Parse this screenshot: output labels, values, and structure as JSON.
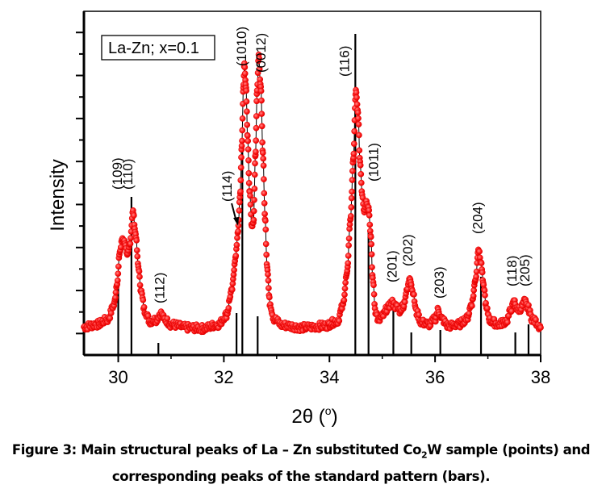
{
  "chart_data": {
    "type": "scatter",
    "title": "",
    "legend": {
      "text": "La-Zn; x=0.1",
      "placement": "top-left"
    },
    "xlabel": "2θ (°)",
    "xlabel_main": "2θ (",
    "xlabel_sup": "o",
    "xlabel_close": ")",
    "ylabel": "Intensity",
    "xlim": [
      29.35,
      38.0
    ],
    "ylim": [
      0,
      426
    ],
    "x_ticks": [
      30,
      32,
      34,
      36,
      38
    ],
    "x_minor_ticks": [
      31,
      33,
      35,
      37
    ],
    "y_tick_labels": "none",
    "grid": false,
    "series": [
      {
        "name": "La-Zn substituted Co2W sample (points)",
        "style": "red-points-with-black-line",
        "color": "#ff1a1a",
        "anchor_points": [
          [
            29.35,
            35
          ],
          [
            29.6,
            38
          ],
          [
            29.8,
            44
          ],
          [
            29.92,
            62
          ],
          [
            29.98,
            90
          ],
          [
            30.03,
            128
          ],
          [
            30.08,
            145
          ],
          [
            30.13,
            140
          ],
          [
            30.17,
            122
          ],
          [
            30.22,
            138
          ],
          [
            30.28,
            178
          ],
          [
            30.33,
            150
          ],
          [
            30.38,
            110
          ],
          [
            30.43,
            80
          ],
          [
            30.5,
            55
          ],
          [
            30.6,
            42
          ],
          [
            30.72,
            44
          ],
          [
            30.8,
            52
          ],
          [
            30.88,
            44
          ],
          [
            31.0,
            38
          ],
          [
            31.3,
            34
          ],
          [
            31.6,
            33
          ],
          [
            31.9,
            38
          ],
          [
            32.05,
            50
          ],
          [
            32.15,
            80
          ],
          [
            32.22,
            120
          ],
          [
            32.27,
            155
          ],
          [
            32.31,
            200
          ],
          [
            32.34,
            260
          ],
          [
            32.37,
            330
          ],
          [
            32.39,
            362
          ],
          [
            32.42,
            330
          ],
          [
            32.45,
            270
          ],
          [
            32.49,
            200
          ],
          [
            32.53,
            160
          ],
          [
            32.56,
            165
          ],
          [
            32.6,
            250
          ],
          [
            32.63,
            330
          ],
          [
            32.66,
            370
          ],
          [
            32.7,
            330
          ],
          [
            32.74,
            250
          ],
          [
            32.78,
            170
          ],
          [
            32.82,
            110
          ],
          [
            32.87,
            65
          ],
          [
            32.95,
            45
          ],
          [
            33.1,
            37
          ],
          [
            33.5,
            34
          ],
          [
            33.9,
            36
          ],
          [
            34.15,
            42
          ],
          [
            34.25,
            60
          ],
          [
            34.33,
            100
          ],
          [
            34.4,
            170
          ],
          [
            34.45,
            240
          ],
          [
            34.5,
            327
          ],
          [
            34.54,
            300
          ],
          [
            34.58,
            240
          ],
          [
            34.62,
            200
          ],
          [
            34.66,
            178
          ],
          [
            34.7,
            190
          ],
          [
            34.74,
            185
          ],
          [
            34.78,
            150
          ],
          [
            34.82,
            95
          ],
          [
            34.87,
            55
          ],
          [
            34.93,
            42
          ],
          [
            35.0,
            48
          ],
          [
            35.1,
            58
          ],
          [
            35.18,
            65
          ],
          [
            35.26,
            60
          ],
          [
            35.33,
            55
          ],
          [
            35.4,
            62
          ],
          [
            35.47,
            80
          ],
          [
            35.52,
            97
          ],
          [
            35.58,
            78
          ],
          [
            35.65,
            52
          ],
          [
            35.75,
            40
          ],
          [
            35.9,
            38
          ],
          [
            36.0,
            45
          ],
          [
            36.06,
            56
          ],
          [
            36.12,
            45
          ],
          [
            36.25,
            36
          ],
          [
            36.45,
            38
          ],
          [
            36.6,
            45
          ],
          [
            36.7,
            65
          ],
          [
            36.77,
            95
          ],
          [
            36.82,
            132
          ],
          [
            36.87,
            115
          ],
          [
            36.92,
            85
          ],
          [
            36.98,
            55
          ],
          [
            37.05,
            42
          ],
          [
            37.2,
            38
          ],
          [
            37.35,
            42
          ],
          [
            37.45,
            58
          ],
          [
            37.5,
            66
          ],
          [
            37.56,
            56
          ],
          [
            37.62,
            58
          ],
          [
            37.7,
            66
          ],
          [
            37.76,
            58
          ],
          [
            37.84,
            45
          ],
          [
            37.92,
            40
          ],
          [
            38.0,
            34
          ]
        ]
      },
      {
        "name": "Standard pattern (bars)",
        "style": "black-bars",
        "color": "#000000",
        "bars": [
          {
            "x": 30.0,
            "value": 90
          },
          {
            "x": 30.25,
            "value": 196
          },
          {
            "x": 30.76,
            "value": 15
          },
          {
            "x": 32.24,
            "value": 52
          },
          {
            "x": 32.35,
            "value": 255
          },
          {
            "x": 32.64,
            "value": 48
          },
          {
            "x": 34.49,
            "value": 398
          },
          {
            "x": 34.74,
            "value": 152
          },
          {
            "x": 35.21,
            "value": 62
          },
          {
            "x": 35.55,
            "value": 28
          },
          {
            "x": 36.1,
            "value": 31
          },
          {
            "x": 36.87,
            "value": 97
          },
          {
            "x": 37.52,
            "value": 28
          },
          {
            "x": 37.77,
            "value": 38
          }
        ]
      }
    ],
    "annotations": [
      {
        "text": "(109)",
        "x": 30.0,
        "y": 205
      },
      {
        "text": "(110)",
        "x": 30.2,
        "y": 205
      },
      {
        "text": "(112)",
        "x": 30.8,
        "y": 64
      },
      {
        "text": "(114)",
        "x": 32.08,
        "y": 190
      },
      {
        "text": "(1010)",
        "x": 32.35,
        "y": 358
      },
      {
        "text": "(0012)",
        "x": 32.72,
        "y": 350
      },
      {
        "text": "(116)",
        "x": 34.3,
        "y": 345
      },
      {
        "text": "(1011)",
        "x": 34.85,
        "y": 215
      },
      {
        "text": "(201)",
        "x": 35.2,
        "y": 90
      },
      {
        "text": "(202)",
        "x": 35.5,
        "y": 110
      },
      {
        "text": "(203)",
        "x": 36.1,
        "y": 70
      },
      {
        "text": "(204)",
        "x": 36.82,
        "y": 150
      },
      {
        "text": "(118)",
        "x": 37.47,
        "y": 85
      },
      {
        "text": "(205)",
        "x": 37.72,
        "y": 85
      }
    ],
    "arrow_annotation": {
      "points_to": "(114)",
      "x": 32.27,
      "y": 160
    }
  },
  "caption": {
    "line1_pre": "Figure 3: Main structural peaks of La – Zn substituted Co",
    "line1_sub": "2",
    "line1_post": "W sample (points) and",
    "line2": "corresponding peaks of the standard pattern (bars)."
  }
}
